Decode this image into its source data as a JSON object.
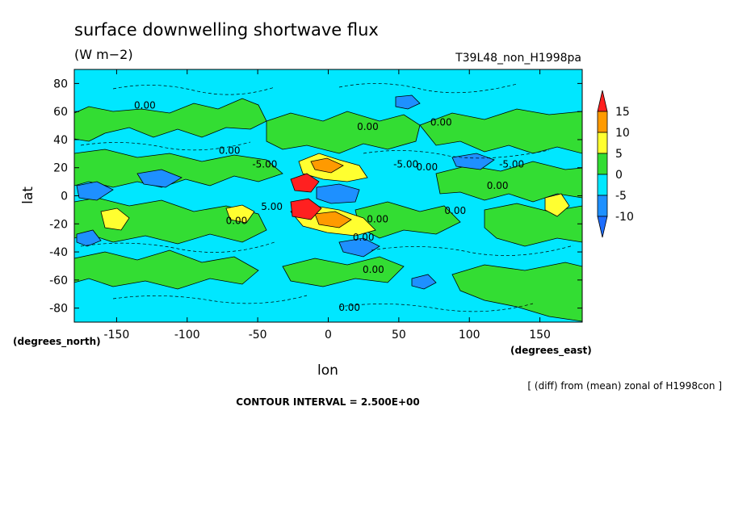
{
  "chart_data": {
    "type": "heatmap",
    "title": "surface downwelling shortwave flux",
    "units": "(W m−2)",
    "experiment": "T39L48_non_H1998pa",
    "xlabel": "lon",
    "ylabel": "lat",
    "x_units": "(degrees_east)",
    "y_units": "(degrees_north)",
    "xlim": [
      -180,
      180
    ],
    "ylim": [
      -90,
      90
    ],
    "x_ticks": [
      -150,
      -100,
      -50,
      0,
      50,
      100,
      150
    ],
    "y_ticks": [
      80,
      60,
      40,
      20,
      0,
      -20,
      -40,
      -60,
      -80
    ],
    "colorbar": {
      "levels": [
        15,
        10,
        5,
        0,
        -5,
        -10
      ],
      "colors": [
        "#ff2020",
        "#ff9a00",
        "#ffff30",
        "#33dd33",
        "#00e7ff",
        "#1e90ff",
        "#1e6eff"
      ],
      "bins": [
        "< -10",
        "-10 to -5",
        "-5 to 0",
        "0 to 5",
        "5 to 10",
        "10 to 15",
        "> 15"
      ]
    },
    "contour_labels": [
      {
        "lon": -130,
        "lat": 62,
        "text": "0.00"
      },
      {
        "lon": -70,
        "lat": 30,
        "text": "0.00"
      },
      {
        "lon": -45,
        "lat": 20,
        "text": "-5.00"
      },
      {
        "lon": 28,
        "lat": 47,
        "text": "0.00"
      },
      {
        "lon": 80,
        "lat": 50,
        "text": "0.00"
      },
      {
        "lon": 55,
        "lat": 20,
        "text": "-5.00"
      },
      {
        "lon": 70,
        "lat": 18,
        "text": "0.00"
      },
      {
        "lon": 130,
        "lat": 20,
        "text": "-5.00"
      },
      {
        "lon": 120,
        "lat": 5,
        "text": "0.00"
      },
      {
        "lon": 90,
        "lat": -13,
        "text": "0.00"
      },
      {
        "lon": -65,
        "lat": -20,
        "text": "0.00"
      },
      {
        "lon": -40,
        "lat": -10,
        "text": "5.00"
      },
      {
        "lon": 35,
        "lat": -19,
        "text": "0.00"
      },
      {
        "lon": 25,
        "lat": -32,
        "text": "0.00"
      },
      {
        "lon": 32,
        "lat": -55,
        "text": "0.00"
      },
      {
        "lon": 15,
        "lat": -82,
        "text": "0.00"
      }
    ],
    "contour_interval_text": "CONTOUR INTERVAL = 2.500E+00",
    "footnote": "[ (diff) from (mean) zonal of H1998con ]"
  }
}
